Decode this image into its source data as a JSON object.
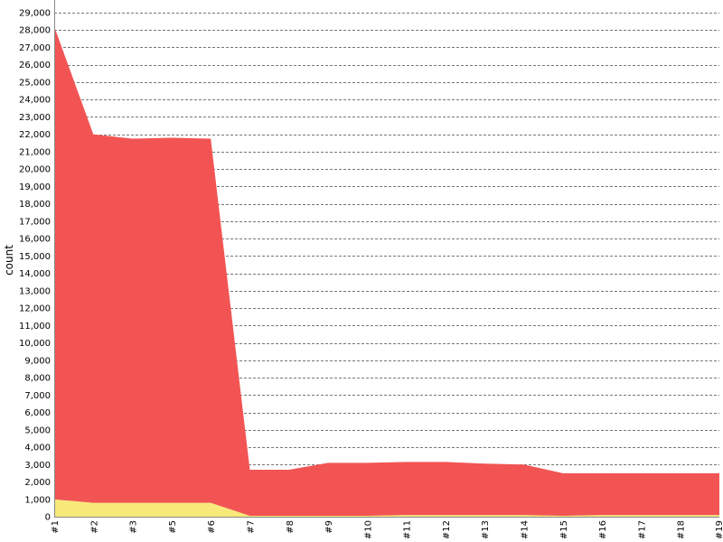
{
  "chart_data": {
    "type": "area",
    "stacked": true,
    "title": "",
    "xlabel": "",
    "ylabel": "count",
    "ylim": [
      0,
      29000
    ],
    "y_tick_step": 1000,
    "grid": "horizontal-dashed",
    "legend": "none",
    "categories": [
      "#1",
      "#2",
      "#3",
      "#5",
      "#6",
      "#7",
      "#8",
      "#9",
      "#10",
      "#11",
      "#12",
      "#13",
      "#14",
      "#15",
      "#16",
      "#17",
      "#18",
      "#19"
    ],
    "series": [
      {
        "color": "#f7e97a",
        "values": [
          1000,
          800,
          800,
          800,
          800,
          50,
          50,
          50,
          50,
          100,
          100,
          100,
          100,
          50,
          100,
          100,
          100,
          100
        ]
      },
      {
        "color": "#f25454",
        "values": [
          27200,
          21200,
          20950,
          21000,
          20950,
          2650,
          2650,
          3050,
          3050,
          3050,
          3050,
          2950,
          2900,
          2450,
          2400,
          2400,
          2400,
          2400
        ]
      }
    ]
  }
}
